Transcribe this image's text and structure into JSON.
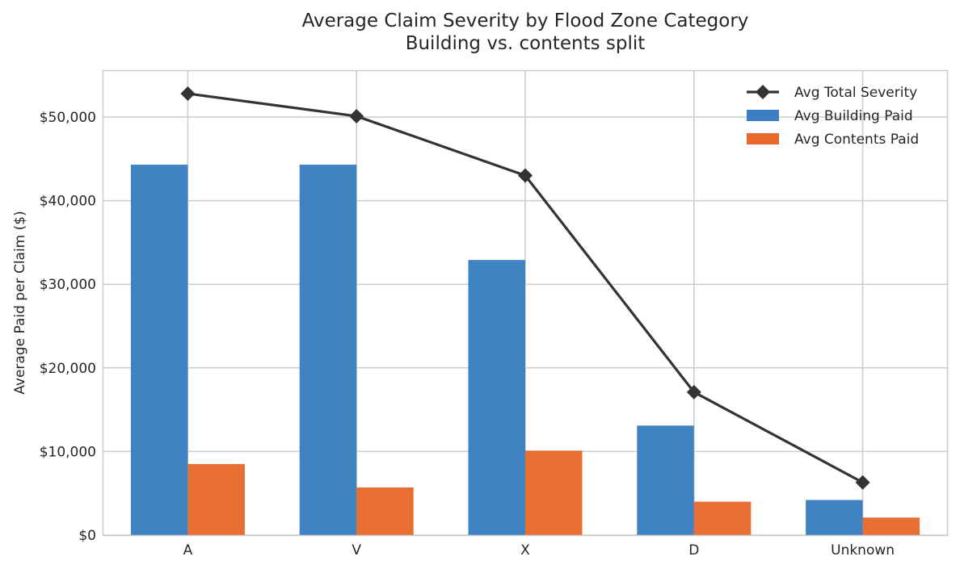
{
  "chart_data": {
    "type": "bar",
    "title": "Average Claim Severity by Flood Zone Category",
    "subtitle": "Building vs. contents split",
    "xlabel": "",
    "ylabel": "Average Paid per Claim ($)",
    "categories": [
      "A",
      "V",
      "X",
      "D",
      "Unknown"
    ],
    "ylim": [
      0,
      55500
    ],
    "yticks": [
      0,
      10000,
      20000,
      30000,
      40000,
      50000
    ],
    "ytick_labels": [
      "$0",
      "$10,000",
      "$20,000",
      "$30,000",
      "$40,000",
      "$50,000"
    ],
    "grid": true,
    "legend_position": "top-right",
    "series": [
      {
        "name": "Avg Building Paid",
        "kind": "bar",
        "color": "#3a7fc1",
        "values": [
          44300,
          44300,
          32900,
          13100,
          4200
        ]
      },
      {
        "name": "Avg Contents Paid",
        "kind": "bar",
        "color": "#e8692c",
        "values": [
          8500,
          5700,
          10100,
          4000,
          2100
        ]
      },
      {
        "name": "Avg Total Severity",
        "kind": "line",
        "color": "#333333",
        "marker": "diamond",
        "values": [
          52800,
          50100,
          43000,
          17100,
          6300
        ]
      }
    ]
  }
}
